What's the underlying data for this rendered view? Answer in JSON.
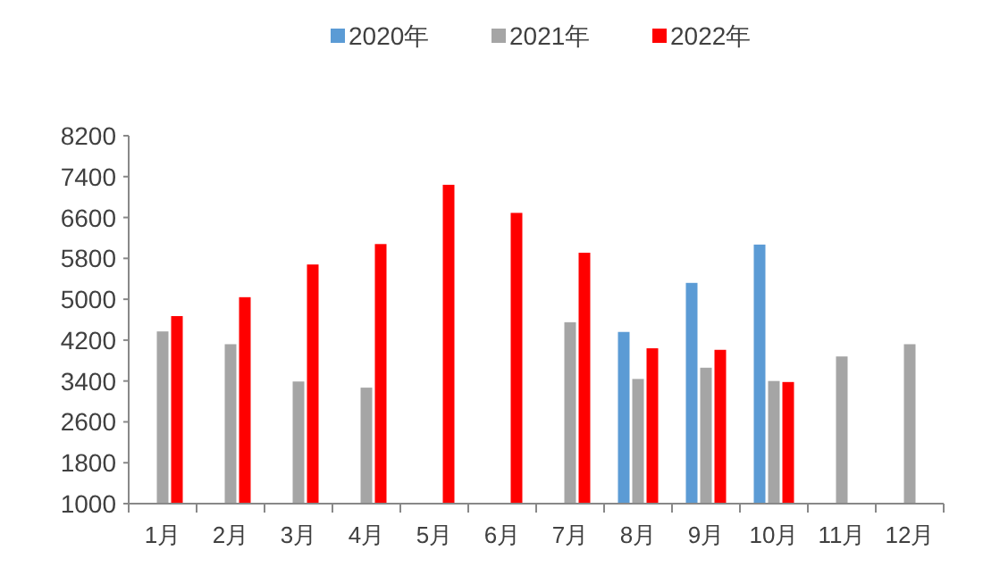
{
  "chart_data": {
    "type": "bar",
    "categories": [
      "1月",
      "2月",
      "3月",
      "4月",
      "5月",
      "6月",
      "7月",
      "8月",
      "9月",
      "10月",
      "11月",
      "12月"
    ],
    "series": [
      {
        "name": "2020年",
        "color": "#5b9bd5",
        "values": [
          null,
          null,
          null,
          null,
          null,
          null,
          null,
          4360,
          5320,
          6070,
          null,
          null
        ]
      },
      {
        "name": "2021年",
        "color": "#a5a5a5",
        "values": [
          4370,
          4120,
          3390,
          3270,
          null,
          null,
          4550,
          3440,
          3660,
          3400,
          3880,
          4120
        ]
      },
      {
        "name": "2022年",
        "color": "#ff0000",
        "values": [
          4670,
          5040,
          5680,
          6080,
          7240,
          6690,
          5910,
          4040,
          4010,
          3380,
          null,
          null
        ]
      }
    ],
    "ylim": [
      1000,
      8200
    ],
    "yticks": [
      1000,
      1800,
      2600,
      3400,
      4200,
      5000,
      5800,
      6600,
      7400,
      8200
    ],
    "legend": "top"
  }
}
